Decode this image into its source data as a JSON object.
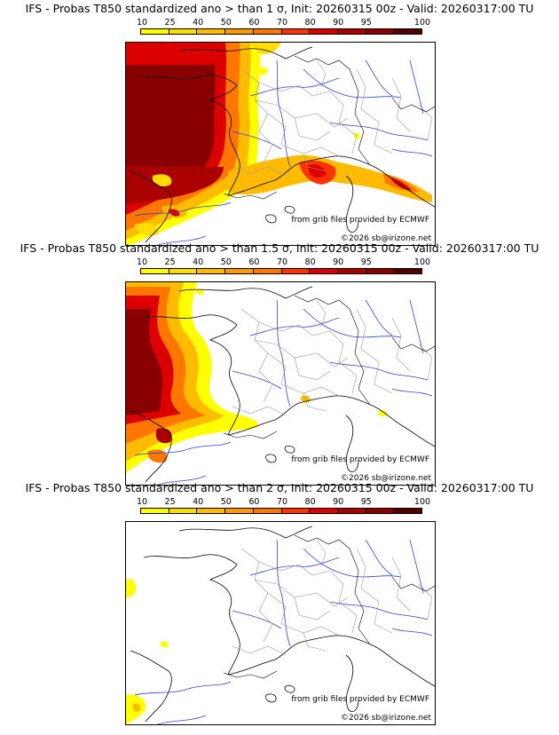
{
  "legend": {
    "ticks": [
      "10",
      "25",
      "40",
      "50",
      "60",
      "70",
      "80",
      "90",
      "95",
      "100"
    ],
    "colors": [
      "#ffff00",
      "#ffdd00",
      "#ffbb00",
      "#ff9900",
      "#ff7700",
      "#ff3300",
      "#dd0000",
      "#aa0000",
      "#880000",
      "#550000"
    ]
  },
  "panels": [
    {
      "title": "IFS - Probas T850  standardized ano > than 1 σ, Init: 20260315 00z - Valid: 20260317:00 TU",
      "source": "from grib files provided by ECMWF",
      "copyright": "©2026 sb@irizone.net"
    },
    {
      "title": "IFS - Probas T850  standardized ano > than 1.5 σ, Init: 20260315 00z - Valid: 20260317:00 TU",
      "source": "from grib files provided by ECMWF",
      "copyright": "©2026 sb@irizone.net"
    },
    {
      "title": "IFS - Probas T850  standardized ano > than 2 σ, Init: 20260315 00z - Valid: 20260317:00 TU",
      "source": "from grib files provided by ECMWF",
      "copyright": "©2026 sb@irizone.net"
    }
  ]
}
